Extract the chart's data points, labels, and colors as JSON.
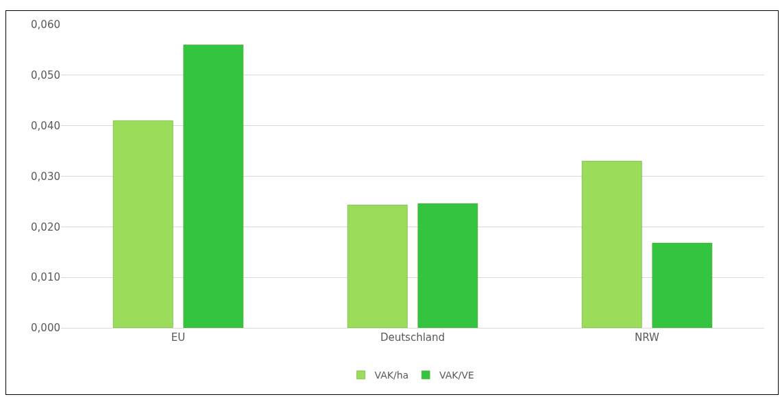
{
  "chart_data": {
    "type": "bar",
    "categories": [
      "EU",
      "Deutschland",
      "NRW"
    ],
    "series": [
      {
        "name": "VAK/ha",
        "color": "#9bdc5a",
        "values": [
          0.041,
          0.0243,
          0.033
        ]
      },
      {
        "name": "VAK/VE",
        "color": "#35c43f",
        "values": [
          0.056,
          0.0246,
          0.0168
        ]
      }
    ],
    "ylim": [
      0,
      0.06
    ],
    "yticks": [
      {
        "value": 0,
        "label": "0,000"
      },
      {
        "value": 0.01,
        "label": "0,010"
      },
      {
        "value": 0.02,
        "label": "0,020"
      },
      {
        "value": 0.03,
        "label": "0,030"
      },
      {
        "value": 0.04,
        "label": "0,040"
      },
      {
        "value": 0.05,
        "label": "0,050"
      },
      {
        "value": 0.06,
        "label": "0,060"
      }
    ],
    "grid": "y",
    "legend": "bottom"
  }
}
